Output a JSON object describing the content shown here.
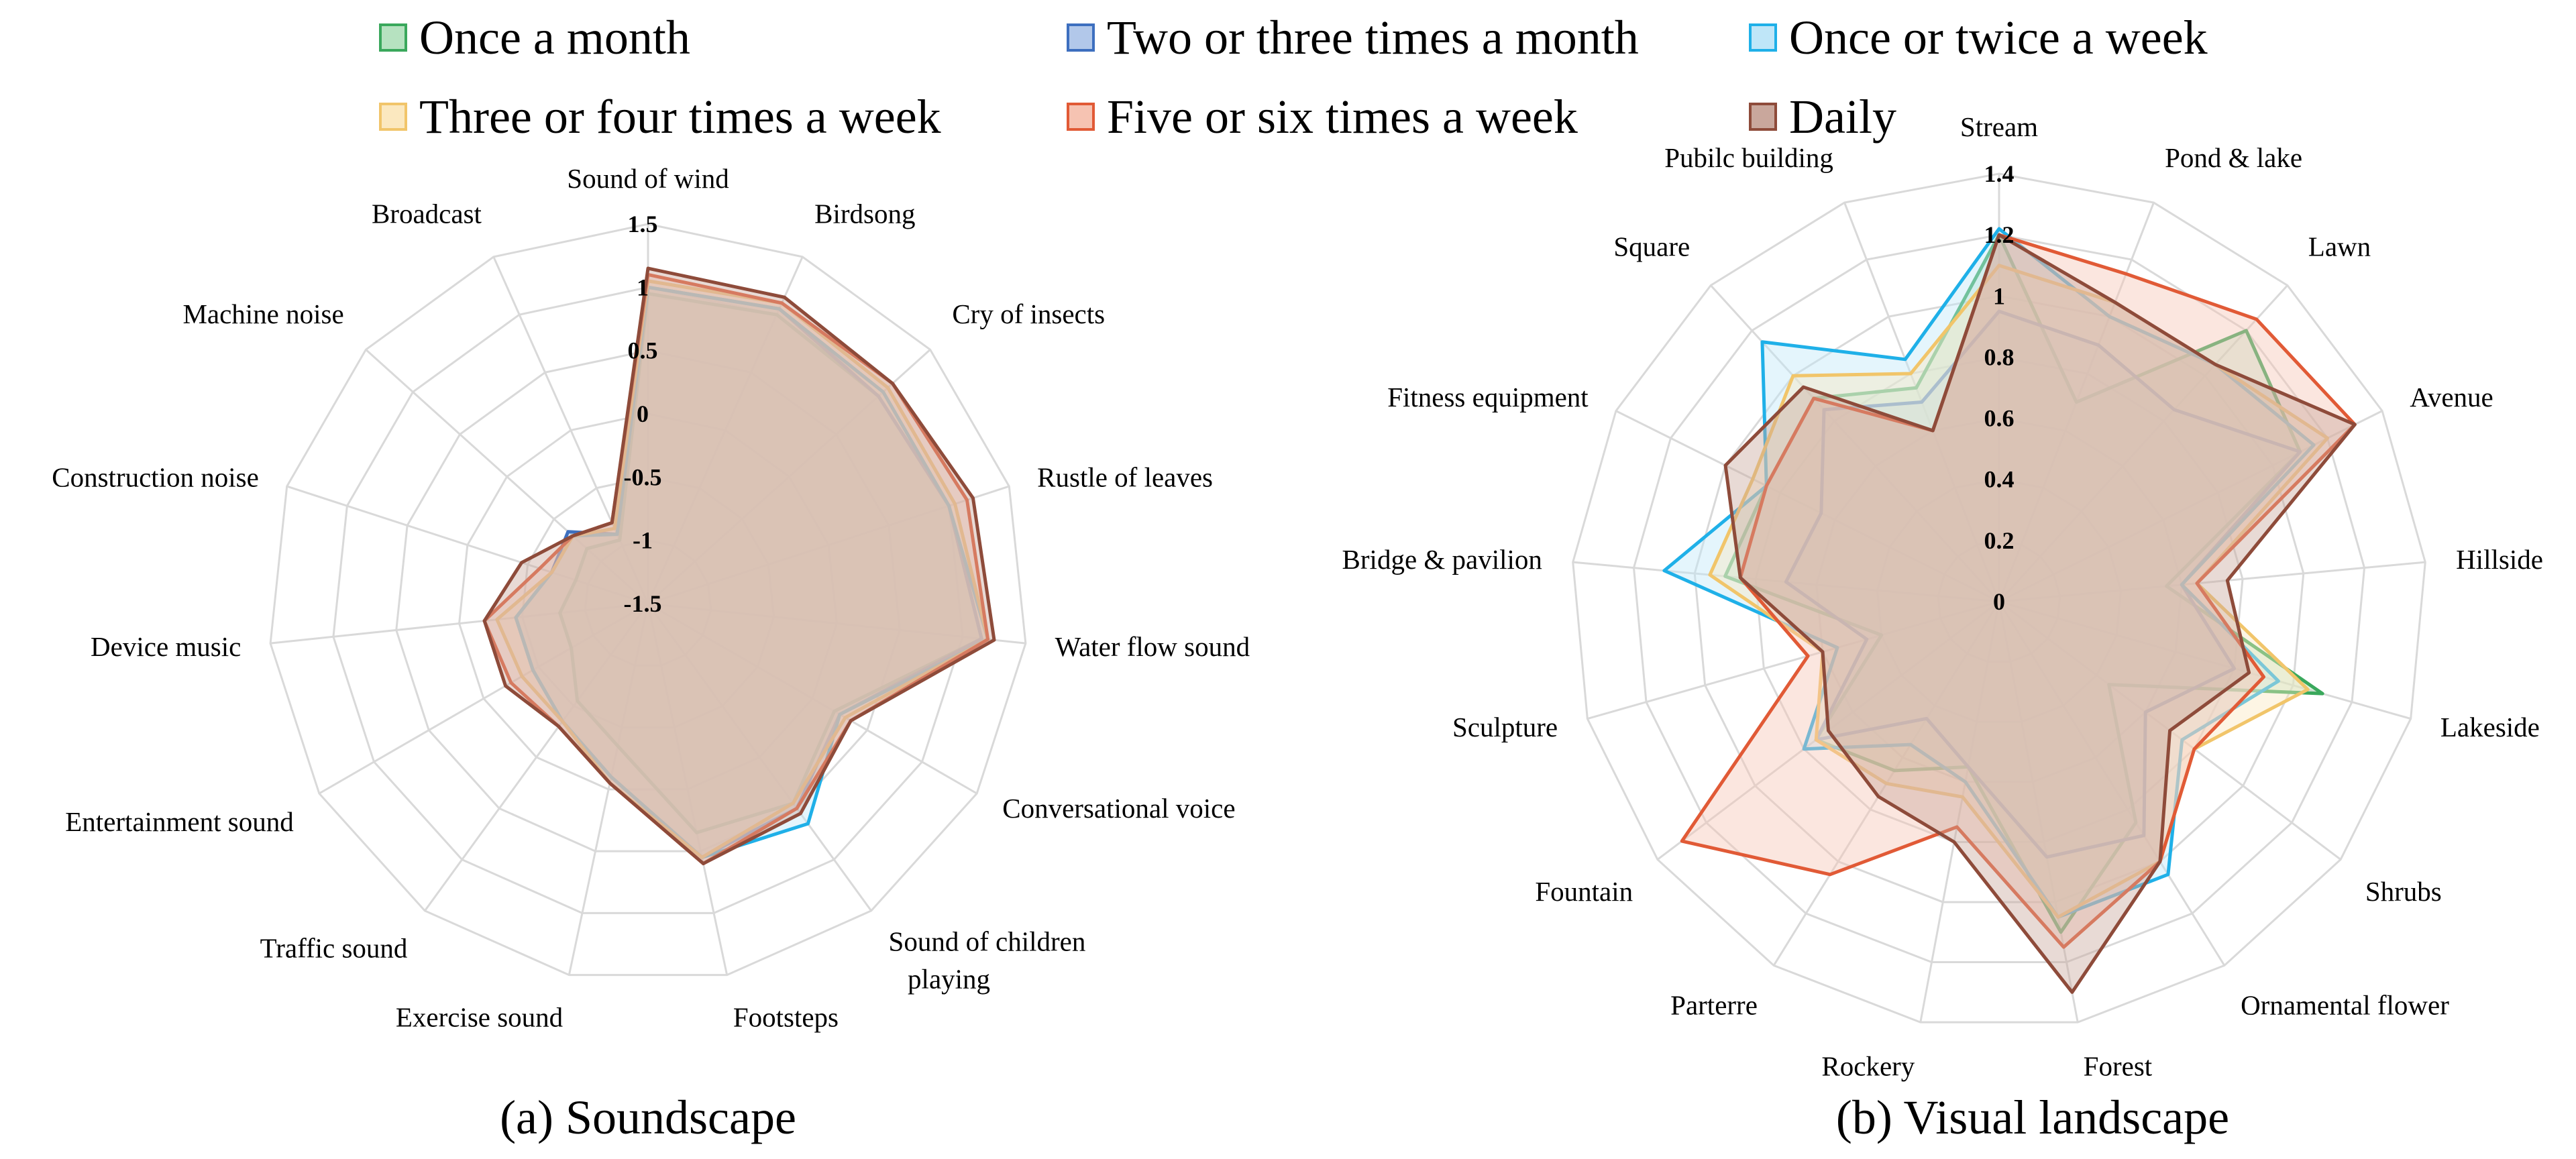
{
  "legend": [
    {
      "name": "Once a month",
      "stroke": "#3aa85c",
      "fill": "#b6e2c0"
    },
    {
      "name": "Two or three times a month",
      "stroke": "#3d6fbf",
      "fill": "#b2c8ea"
    },
    {
      "name": "Once or twice a week",
      "stroke": "#1fb0e8",
      "fill": "#bfe6f8"
    },
    {
      "name": "Three or four times a week",
      "stroke": "#f1c56a",
      "fill": "#fbe8bf"
    },
    {
      "name": "Five or six times a week",
      "stroke": "#e15a36",
      "fill": "#f6c3b2"
    },
    {
      "name": "Daily",
      "stroke": "#8e4b3a",
      "fill": "#c9a79c"
    }
  ],
  "chart_data": [
    {
      "type": "radar",
      "title": "(a) Soundscape",
      "categories": [
        "Sound of wind",
        "Birdsong",
        "Cry of insects",
        "Rustle of leaves",
        "Water flow sound",
        "Conversational voice",
        "Sound of children playing",
        "Footsteps",
        "Exercise sound",
        "Traffic sound",
        "Entertainment sound",
        "Device music",
        "Construction noise",
        "Machine noise",
        "Broadcast"
      ],
      "rlim": [
        -1.5,
        1.5
      ],
      "ticks": [
        -1.5,
        -1,
        -0.5,
        0,
        0.5,
        1,
        1.5
      ],
      "tick_labels": [
        "-1.5",
        "-1",
        "-0.5",
        "0",
        "0.5",
        "1",
        "1.5"
      ],
      "series": [
        {
          "name": "Once a month",
          "values": [
            0.95,
            1.0,
            0.95,
            1.0,
            1.15,
            0.2,
            0.45,
            0.35,
            -0.35,
            -0.55,
            -0.8,
            -0.8,
            -0.9,
            -0.85,
            -0.95
          ]
        },
        {
          "name": "Two or three times a month",
          "values": [
            1.0,
            1.05,
            0.95,
            1.0,
            1.15,
            0.25,
            0.5,
            0.55,
            -0.1,
            -0.35,
            -0.45,
            -0.45,
            -0.7,
            -0.65,
            -0.9
          ]
        },
        {
          "name": "Once or twice a week",
          "values": [
            1.0,
            1.05,
            1.0,
            1.0,
            1.2,
            0.25,
            0.65,
            0.55,
            -0.1,
            -0.35,
            -0.45,
            -0.45,
            -0.7,
            -0.7,
            -0.9
          ]
        },
        {
          "name": "Three or four times a week",
          "values": [
            1.05,
            1.1,
            1.05,
            1.05,
            1.2,
            0.3,
            0.45,
            0.55,
            -0.05,
            -0.35,
            -0.35,
            -0.3,
            -0.7,
            -0.7,
            -0.85
          ]
        },
        {
          "name": "Five or six times a week",
          "values": [
            1.1,
            1.1,
            1.1,
            1.15,
            1.2,
            0.35,
            0.5,
            0.6,
            -0.05,
            -0.3,
            -0.25,
            -0.2,
            -0.6,
            -0.7,
            -0.8
          ]
        },
        {
          "name": "Daily",
          "values": [
            1.15,
            1.15,
            1.1,
            1.2,
            1.25,
            0.35,
            0.55,
            0.6,
            -0.05,
            -0.3,
            -0.2,
            -0.2,
            -0.45,
            -0.7,
            -0.8
          ]
        }
      ]
    },
    {
      "type": "radar",
      "title": "(b) Visual landscape",
      "categories": [
        "Stream",
        "Pond & lake",
        "Lawn",
        "Avenue",
        "Hillside",
        "Lakeside",
        "Shrubs",
        "Ornamental flower",
        "Forest",
        "Rockery",
        "Parterre",
        "Fountain",
        "Sculpture",
        "Bridge & pavilion",
        "Fitness equipment",
        "Square",
        "Pubilc building"
      ],
      "rlim": [
        0,
        1.4
      ],
      "ticks": [
        0,
        0.2,
        0.4,
        0.6,
        0.8,
        1,
        1.2,
        1.4
      ],
      "tick_labels": [
        "0",
        "0.2",
        "0.4",
        "0.6",
        "0.8",
        "1",
        "1.2",
        "1.4"
      ],
      "series": [
        {
          "name": "Once a month",
          "values": [
            1.2,
            0.7,
            1.2,
            1.1,
            0.55,
            1.1,
            0.45,
            0.85,
            1.1,
            0.55,
            0.65,
            0.75,
            0.4,
            0.9,
            0.85,
            0.9,
            0.75
          ]
        },
        {
          "name": "Two or three times a month",
          "values": [
            0.95,
            0.9,
            0.85,
            1.1,
            0.6,
            0.8,
            0.6,
            0.9,
            0.85,
            0.55,
            0.45,
            0.75,
            0.45,
            0.7,
            0.65,
            0.85,
            0.7
          ]
        },
        {
          "name": "Once or twice a week",
          "values": [
            1.22,
            1.0,
            1.05,
            1.15,
            0.6,
            0.95,
            0.75,
            1.05,
            1.05,
            0.6,
            0.55,
            0.8,
            0.55,
            1.1,
            0.85,
            1.15,
            0.85
          ]
        },
        {
          "name": "Three or four times a week",
          "values": [
            1.1,
            1.05,
            1.05,
            1.2,
            0.65,
            1.05,
            0.8,
            1.0,
            1.05,
            0.65,
            0.7,
            0.75,
            0.6,
            0.95,
            0.9,
            1.0,
            0.8
          ]
        },
        {
          "name": "Five or six times a week",
          "values": [
            1.2,
            1.15,
            1.25,
            1.3,
            0.65,
            0.9,
            0.8,
            1.0,
            1.15,
            0.75,
            1.05,
            1.3,
            0.65,
            0.85,
            0.85,
            0.9,
            0.6
          ]
        },
        {
          "name": "Daily",
          "values": [
            1.2,
            1.05,
            1.05,
            1.3,
            0.75,
            0.85,
            0.7,
            1.0,
            1.3,
            0.8,
            0.75,
            0.7,
            0.6,
            0.85,
            1.0,
            0.95,
            0.6
          ]
        }
      ]
    }
  ]
}
